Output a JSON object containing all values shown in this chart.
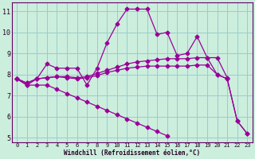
{
  "xlabel": "Windchill (Refroidissement éolien,°C)",
  "bg_color": "#cceedd",
  "grid_color": "#99cccc",
  "line_color": "#990099",
  "xlim": [
    -0.5,
    23.5
  ],
  "ylim": [
    4.8,
    11.4
  ],
  "yticks": [
    5,
    6,
    7,
    8,
    9,
    10,
    11
  ],
  "xticks": [
    0,
    1,
    2,
    3,
    4,
    5,
    6,
    7,
    8,
    9,
    10,
    11,
    12,
    13,
    14,
    15,
    16,
    17,
    18,
    19,
    20,
    21,
    22,
    23
  ],
  "series": [
    [
      7.8,
      7.5,
      7.8,
      8.5,
      8.3,
      8.3,
      8.3,
      7.5,
      8.3,
      9.5,
      10.4,
      11.1,
      11.1,
      11.1,
      9.9,
      10.0,
      8.9,
      9.0,
      9.8,
      8.8,
      8.0,
      7.8,
      5.8,
      5.2
    ],
    [
      7.8,
      7.6,
      7.8,
      7.85,
      7.9,
      7.9,
      7.85,
      7.9,
      8.05,
      8.2,
      8.35,
      8.5,
      8.6,
      8.65,
      8.7,
      8.75,
      8.75,
      8.75,
      8.8,
      8.8,
      8.8,
      7.85,
      null,
      null
    ],
    [
      7.8,
      7.6,
      7.8,
      7.85,
      7.9,
      7.85,
      7.8,
      7.85,
      7.95,
      8.1,
      8.2,
      8.3,
      8.35,
      8.4,
      8.4,
      8.4,
      8.4,
      8.4,
      8.45,
      8.45,
      8.0,
      7.8,
      5.8,
      5.2
    ],
    [
      7.8,
      7.5,
      7.5,
      7.5,
      7.3,
      7.1,
      6.9,
      6.7,
      6.5,
      6.3,
      6.1,
      5.9,
      5.7,
      5.5,
      5.3,
      5.1,
      null,
      null,
      null,
      null,
      null,
      null,
      null,
      null
    ]
  ],
  "marker": "D",
  "marker_size": 2.5,
  "linewidth": 0.9
}
